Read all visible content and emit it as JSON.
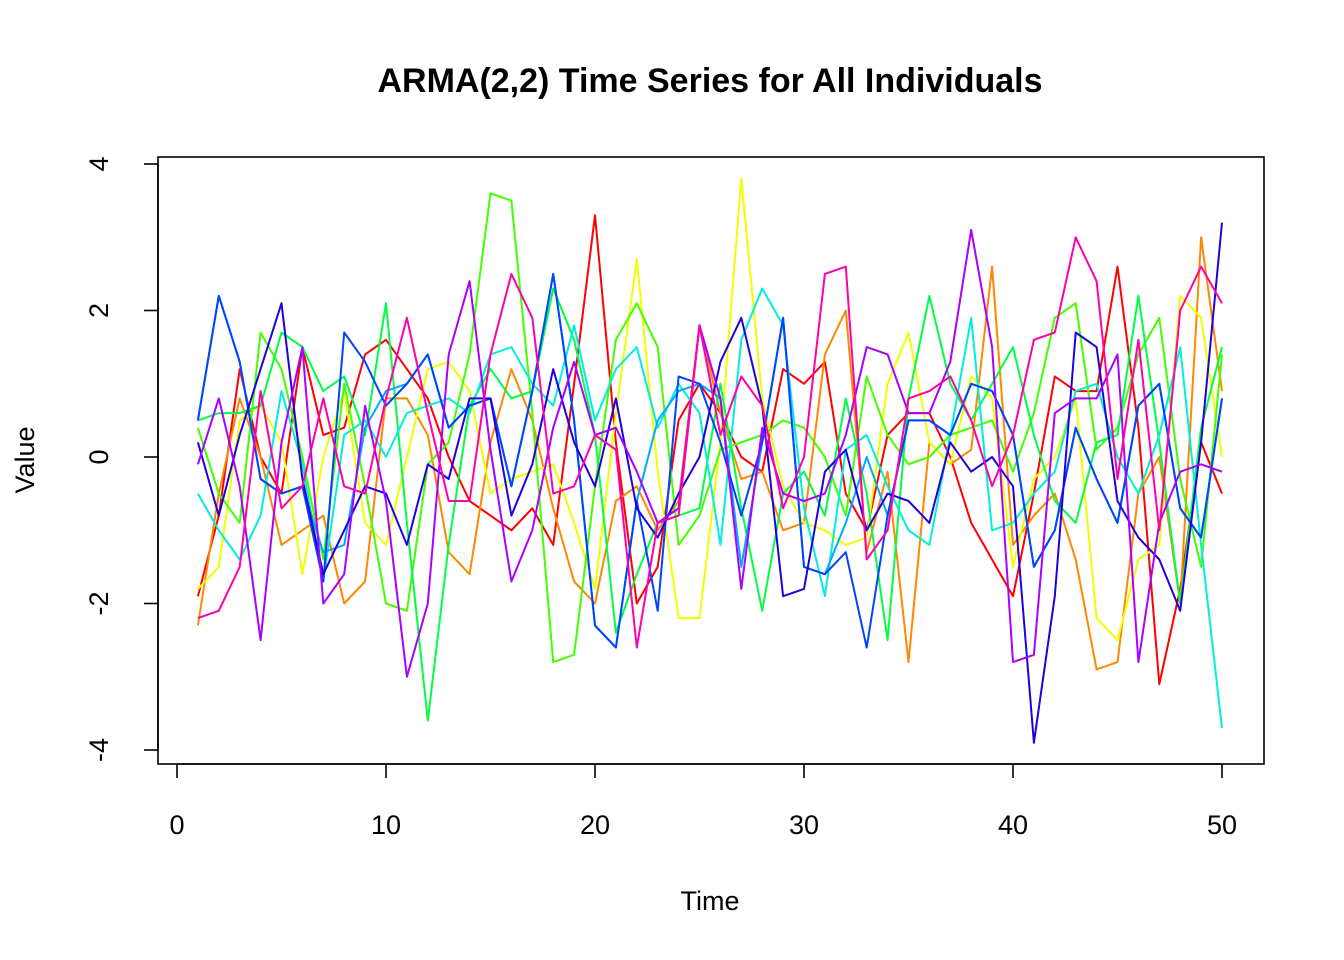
{
  "chart_data": {
    "type": "line",
    "title": "ARMA(2,2) Time Series for All Individuals",
    "xlabel": "Time",
    "ylabel": "Value",
    "xlim": [
      0,
      50
    ],
    "ylim": [
      -4,
      4
    ],
    "x_ticks": [
      0,
      10,
      20,
      30,
      40,
      50
    ],
    "y_ticks": [
      -4,
      -2,
      0,
      2,
      4
    ],
    "grid": false,
    "legend": "none",
    "x": [
      1,
      2,
      3,
      4,
      5,
      6,
      7,
      8,
      9,
      10,
      11,
      12,
      13,
      14,
      15,
      16,
      17,
      18,
      19,
      20,
      21,
      22,
      23,
      24,
      25,
      26,
      27,
      28,
      29,
      30,
      31,
      32,
      33,
      34,
      35,
      36,
      37,
      38,
      39,
      40,
      41,
      42,
      43,
      44,
      45,
      46,
      47,
      48,
      49,
      50
    ],
    "series": [
      {
        "color": "#FF0000",
        "values": [
          -1.9,
          -0.8,
          1.2,
          0,
          -0.5,
          1.5,
          0.3,
          0.4,
          1.4,
          1.6,
          1.2,
          0.8,
          0.0,
          -0.6,
          -0.8,
          -1.0,
          -0.7,
          -1.2,
          1.0,
          3.3,
          0.2,
          -2.0,
          -1.5,
          0.5,
          1.0,
          0.6,
          0.0,
          -0.2,
          1.2,
          1.0,
          1.3,
          -0.5,
          -1.0,
          0.3,
          0.6,
          0.6,
          0.0,
          -0.9,
          -1.4,
          -1.9,
          -0.5,
          1.1,
          0.9,
          0.9,
          2.6,
          0.4,
          -3.1,
          -1.8,
          0.2,
          -0.5
        ]
      },
      {
        "color": "#FF8800",
        "values": [
          -2.3,
          -0.5,
          0.8,
          0.0,
          -1.2,
          -1.0,
          -0.8,
          -2.0,
          -1.7,
          0.8,
          0.8,
          0.3,
          -1.3,
          -1.6,
          0.2,
          1.2,
          0.5,
          -0.7,
          -1.7,
          -2.0,
          -0.6,
          -0.4,
          -1.0,
          -0.6,
          1.8,
          0.6,
          -0.3,
          -0.2,
          -1.0,
          -0.9,
          1.4,
          2.0,
          -1.3,
          -0.2,
          -2.8,
          0.2,
          -0.1,
          0.1,
          2.6,
          -1.2,
          -0.8,
          -0.5,
          -1.4,
          -2.9,
          -2.8,
          -0.5,
          0.0,
          -2.0,
          3.0,
          0.9
        ]
      },
      {
        "color": "#EEFF00",
        "values": [
          -1.8,
          -1.5,
          0.5,
          0.7,
          0.2,
          -1.6,
          0.0,
          0.9,
          -0.9,
          -1.2,
          0.0,
          1.2,
          1.3,
          0.9,
          -0.5,
          -0.3,
          -0.2,
          -0.1,
          -0.9,
          -1.8,
          0.6,
          2.7,
          -0.2,
          -2.2,
          -2.2,
          0.2,
          3.8,
          0.8,
          -0.4,
          -0.9,
          -1.0,
          -1.2,
          -1.1,
          1.0,
          1.7,
          0.2,
          -0.1,
          1.1,
          0.8,
          -1.5,
          -0.3,
          0.0,
          0.8,
          -2.2,
          -2.5,
          -1.4,
          -1.2,
          2.2,
          1.9,
          0.0
        ]
      },
      {
        "color": "#44FF00",
        "values": [
          0.4,
          -0.5,
          -0.9,
          1.7,
          1.2,
          0.0,
          -1.4,
          1.0,
          -0.4,
          -2.0,
          -2.1,
          -0.1,
          0.2,
          1.4,
          3.6,
          3.5,
          0.6,
          -2.8,
          -2.7,
          -0.4,
          1.6,
          2.1,
          1.5,
          -1.2,
          -0.8,
          0.1,
          0.2,
          0.3,
          0.5,
          0.4,
          0.0,
          -0.8,
          1.1,
          0.3,
          -0.1,
          0.0,
          0.3,
          0.4,
          0.5,
          -0.2,
          0.6,
          1.9,
          2.1,
          0.1,
          0.4,
          1.4,
          1.9,
          -0.3,
          -1.5,
          1.4
        ]
      },
      {
        "color": "#00FF44",
        "values": [
          0.5,
          0.6,
          0.6,
          0.7,
          1.7,
          1.5,
          0.9,
          1.1,
          0.3,
          2.1,
          -0.9,
          -3.6,
          -1.2,
          0.7,
          1.2,
          0.8,
          0.9,
          2.3,
          1.6,
          0.3,
          -2.4,
          -1.6,
          -0.9,
          -0.8,
          -0.7,
          1.0,
          -0.7,
          -2.1,
          -0.5,
          -0.2,
          -0.8,
          0.8,
          -0.5,
          -2.5,
          0.8,
          2.2,
          1.0,
          0.5,
          1.0,
          1.5,
          0.3,
          -0.6,
          -0.9,
          0.2,
          0.3,
          2.2,
          0.2,
          -2.0,
          0.4,
          1.5
        ]
      },
      {
        "color": "#00EEDD",
        "values": [
          -0.5,
          -1.0,
          -1.4,
          -0.8,
          0.9,
          -0.1,
          -1.7,
          0.3,
          0.5,
          0.0,
          0.6,
          0.7,
          0.8,
          0.6,
          1.4,
          1.5,
          1.0,
          0.7,
          1.8,
          0.5,
          1.2,
          1.5,
          0.4,
          1.0,
          0.6,
          -1.2,
          1.6,
          2.3,
          1.8,
          -0.7,
          -1.9,
          0.1,
          0.3,
          -0.4,
          -1.0,
          -1.2,
          0.3,
          1.9,
          -1.0,
          -0.9,
          -0.5,
          -0.2,
          0.9,
          1.0,
          0.0,
          -0.5,
          0.3,
          1.5,
          -1.2,
          -3.7
        ]
      },
      {
        "color": "#00AAFF",
        "values": [
          0.5,
          2.2,
          1.3,
          -0.3,
          -0.5,
          -0.4,
          -1.3,
          -1.2,
          0.4,
          0.9,
          1.0,
          1.4,
          0.4,
          0.7,
          0.8,
          -0.4,
          0.9,
          2.5,
          0.5,
          -2.3,
          -2.6,
          -0.6,
          0.5,
          0.9,
          1.0,
          0.8,
          -1.5,
          0.2,
          1.9,
          -1.5,
          -1.6,
          -0.9,
          0.0,
          -0.8,
          0.5,
          0.5,
          0.3,
          1.0,
          0.9,
          0.3,
          -1.5,
          -1.0,
          0.4,
          -0.3,
          -0.9,
          0.7,
          1.0,
          -0.7,
          -1.1,
          0.8
        ]
      },
      {
        "color": "#0044FF",
        "values": [
          0.5,
          2.2,
          1.3,
          -0.3,
          -0.5,
          -0.4,
          -1.7,
          1.7,
          1.3,
          0.7,
          1.0,
          1.4,
          0.4,
          0.7,
          0.8,
          -0.4,
          0.9,
          2.5,
          0.5,
          -2.3,
          -2.6,
          -0.6,
          -2.1,
          1.1,
          1.0,
          0.2,
          -0.8,
          0.2,
          1.9,
          -1.5,
          -1.6,
          -1.3,
          -2.6,
          -0.8,
          0.5,
          0.5,
          0.3,
          1.0,
          0.9,
          0.3,
          -1.5,
          -1.0,
          0.4,
          -0.3,
          -0.9,
          0.7,
          1.0,
          -0.7,
          -1.1,
          0.8
        ]
      },
      {
        "color": "#2200DD",
        "values": [
          0.2,
          -0.8,
          0.3,
          1.2,
          2.1,
          -0.3,
          -1.6,
          -1.0,
          -0.4,
          -0.5,
          -1.2,
          -0.1,
          -0.3,
          0.8,
          0.8,
          -0.8,
          -0.1,
          1.2,
          0.2,
          -0.4,
          0.8,
          -0.7,
          -1.1,
          -0.5,
          0.0,
          1.3,
          1.9,
          0.7,
          -1.9,
          -1.8,
          -0.2,
          0.1,
          -1.0,
          -0.5,
          -0.6,
          -0.9,
          0.2,
          -0.2,
          0.0,
          -0.4,
          -3.9,
          -1.9,
          1.7,
          1.5,
          -0.6,
          -1.1,
          -1.4,
          -2.1,
          0.2,
          3.2
        ]
      },
      {
        "color": "#AA00FF",
        "values": [
          -0.1,
          0.8,
          -0.4,
          -2.5,
          0.2,
          1.5,
          -2.0,
          -1.6,
          0.7,
          -0.6,
          -3.0,
          -2.0,
          1.4,
          2.4,
          0.1,
          -1.7,
          -1.0,
          0.4,
          1.3,
          0.3,
          0.4,
          -0.2,
          -0.9,
          -0.7,
          1.8,
          0.8,
          -1.8,
          0.4,
          -0.5,
          -0.6,
          -0.5,
          0.3,
          1.5,
          1.4,
          0.6,
          0.6,
          1.3,
          3.1,
          1.5,
          -2.8,
          -2.7,
          0.6,
          0.8,
          0.8,
          1.4,
          -2.8,
          -0.9,
          -0.2,
          -0.1,
          -0.2
        ]
      },
      {
        "color": "#FF00AA",
        "values": [
          -2.2,
          -2.1,
          -1.5,
          0.9,
          -0.7,
          -0.4,
          0.8,
          -0.4,
          -0.5,
          0.8,
          1.9,
          0.6,
          -0.6,
          -0.6,
          1.4,
          2.5,
          1.9,
          -0.5,
          -0.4,
          0.3,
          0.1,
          -2.6,
          -0.9,
          -0.8,
          1.8,
          0.3,
          1.1,
          0.7,
          -0.7,
          0.0,
          2.5,
          2.6,
          -1.4,
          -1.0,
          0.8,
          0.9,
          1.1,
          0.5,
          -0.4,
          0.3,
          1.6,
          1.7,
          3.0,
          2.4,
          -0.3,
          1.6,
          -1.0,
          2.0,
          2.6,
          2.1
        ]
      }
    ]
  }
}
